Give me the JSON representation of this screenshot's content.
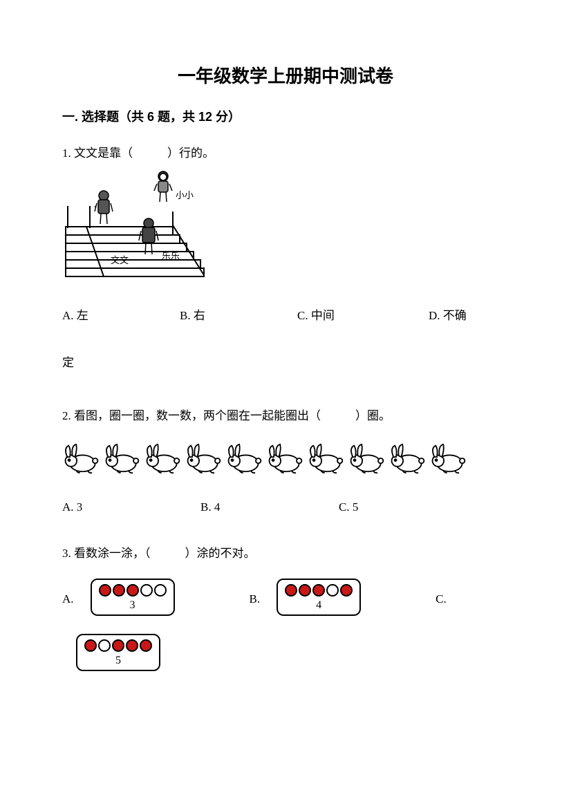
{
  "title": "一年级数学上册期中测试卷",
  "section1": {
    "header": "一. 选择题（共 6 题，共 12 分）",
    "q1": {
      "text_before": "1. 文文是靠（",
      "text_after": "）行的。",
      "labels": {
        "xiaoxiao": "小小",
        "wenwen": "文文",
        "lele": "乐乐"
      },
      "options": {
        "a": "A. 左",
        "b": "B. 右",
        "c": "C. 中间",
        "d": "D. 不确"
      },
      "tail": "定"
    },
    "q2": {
      "text_before": "2. 看图，圈一圈，数一数，两个圈在一起能圈出（",
      "text_after": "）圈。",
      "rabbit_count": 10,
      "options": {
        "a": "A. 3",
        "b": "B. 4",
        "c": "C. 5"
      }
    },
    "q3": {
      "text_before": "3. 看数涂一涂，（",
      "text_after": "）涂的不对。",
      "cards": {
        "a": {
          "label": "A.",
          "dots": [
            1,
            1,
            1,
            0,
            0
          ],
          "num": "3"
        },
        "b": {
          "label": "B.",
          "dots": [
            1,
            1,
            1,
            0,
            1
          ],
          "num": "4"
        },
        "c": {
          "label": "C.",
          "dots": [
            1,
            0,
            1,
            1,
            1
          ],
          "num": "5"
        }
      },
      "colors": {
        "filled": "#c91818",
        "empty": "#ffffff",
        "border": "#000000"
      }
    }
  }
}
